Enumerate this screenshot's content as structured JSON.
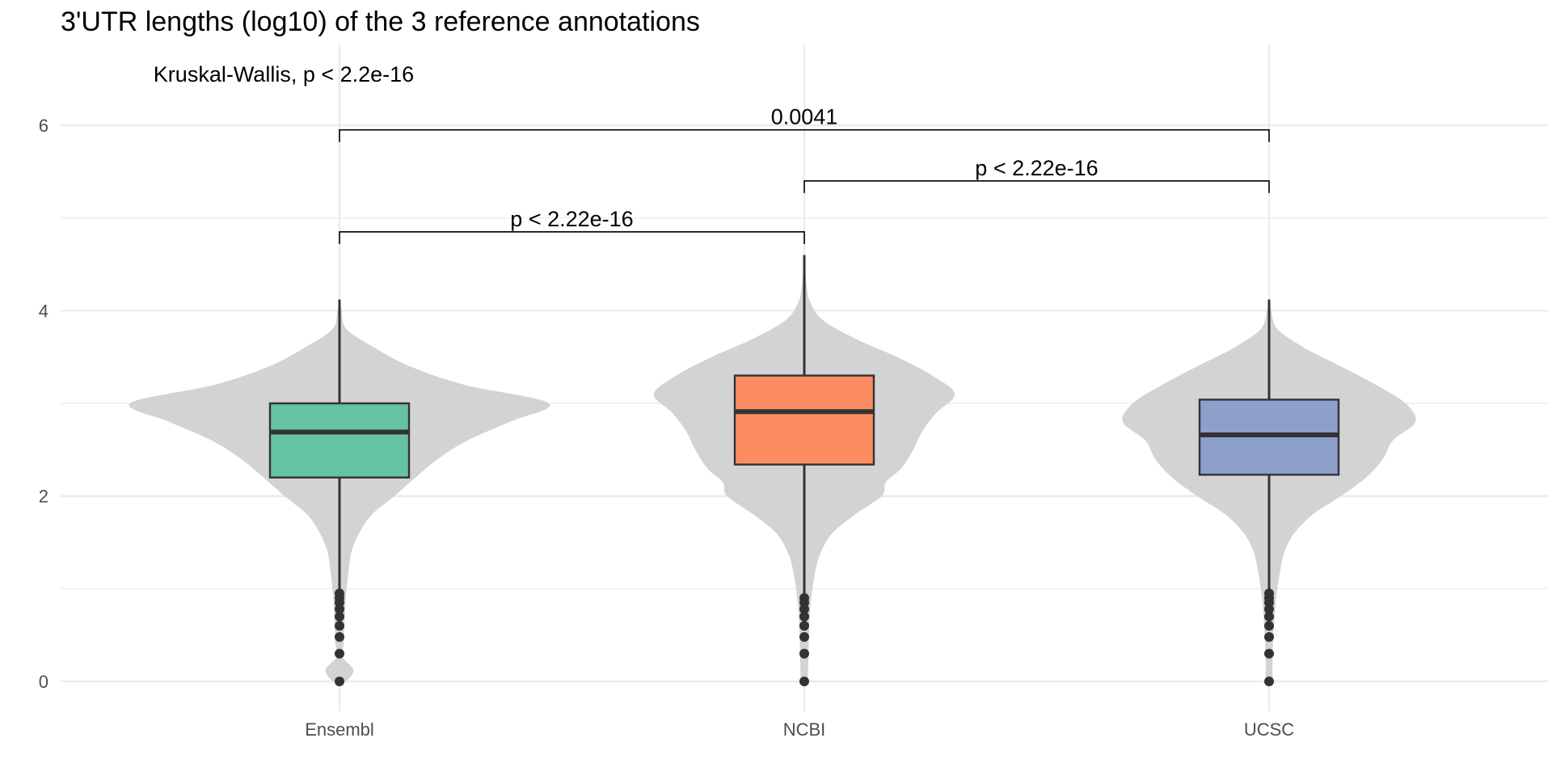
{
  "chart_data": {
    "type": "violin",
    "title": "3'UTR lengths (log10) of the 3 reference annotations",
    "xlabel": "",
    "ylabel": "",
    "categories": [
      "Ensembl",
      "NCBI",
      "UCSC"
    ],
    "ylim": [
      -0.3,
      6.8
    ],
    "y_ticks": [
      0,
      2,
      4,
      6
    ],
    "y_tick_labels": [
      "0",
      "2",
      "4",
      "6"
    ],
    "grid": true,
    "legend": "none",
    "colors": {
      "Ensembl": "#66c2a5",
      "NCBI": "#fc8d62",
      "UCSC": "#8da0cb",
      "violin": "#d3d3d3",
      "outline": "#333333"
    },
    "boxes": [
      {
        "category": "Ensembl",
        "whisker_low": 0.97,
        "q1": 2.2,
        "median": 2.69,
        "q3": 3.0,
        "whisker_high": 4.12
      },
      {
        "category": "NCBI",
        "whisker_low": 0.93,
        "q1": 2.34,
        "median": 2.91,
        "q3": 3.3,
        "whisker_high": 4.6
      },
      {
        "category": "UCSC",
        "whisker_low": 0.97,
        "q1": 2.23,
        "median": 2.66,
        "q3": 3.04,
        "whisker_high": 4.12
      }
    ],
    "outliers": [
      {
        "category": "Ensembl",
        "values": [
          0,
          0.3,
          0.48,
          0.6,
          0.7,
          0.78,
          0.85,
          0.9,
          0.95
        ]
      },
      {
        "category": "NCBI",
        "values": [
          0,
          0.3,
          0.48,
          0.6,
          0.7,
          0.78,
          0.85,
          0.9
        ]
      },
      {
        "category": "UCSC",
        "values": [
          0,
          0.3,
          0.48,
          0.6,
          0.7,
          0.78,
          0.85,
          0.9,
          0.95
        ]
      }
    ],
    "violins": [
      {
        "category": "Ensembl",
        "profile": [
          [
            0.0,
            0.1
          ],
          [
            0.12,
            0.2
          ],
          [
            0.25,
            0.05
          ],
          [
            0.3,
            0.04
          ],
          [
            0.42,
            0.06
          ],
          [
            0.48,
            0.06
          ],
          [
            0.6,
            0.07
          ],
          [
            0.8,
            0.08
          ],
          [
            1.0,
            0.1
          ],
          [
            1.2,
            0.13
          ],
          [
            1.4,
            0.17
          ],
          [
            1.6,
            0.28
          ],
          [
            1.8,
            0.46
          ],
          [
            2.0,
            0.78
          ],
          [
            2.2,
            1.08
          ],
          [
            2.4,
            1.4
          ],
          [
            2.6,
            1.82
          ],
          [
            2.8,
            2.42
          ],
          [
            3.0,
            2.98
          ],
          [
            3.2,
            1.78
          ],
          [
            3.4,
            1.0
          ],
          [
            3.6,
            0.5
          ],
          [
            3.8,
            0.1
          ],
          [
            4.0,
            0.03
          ],
          [
            4.12,
            0.0
          ]
        ]
      },
      {
        "category": "NCBI",
        "profile": [
          [
            0.0,
            0.05
          ],
          [
            0.3,
            0.06
          ],
          [
            0.6,
            0.07
          ],
          [
            0.9,
            0.1
          ],
          [
            1.2,
            0.16
          ],
          [
            1.4,
            0.24
          ],
          [
            1.6,
            0.4
          ],
          [
            1.8,
            0.72
          ],
          [
            2.0,
            1.1
          ],
          [
            2.15,
            1.16
          ],
          [
            2.3,
            1.38
          ],
          [
            2.5,
            1.55
          ],
          [
            2.7,
            1.68
          ],
          [
            2.9,
            1.88
          ],
          [
            3.1,
            2.14
          ],
          [
            3.3,
            1.82
          ],
          [
            3.5,
            1.32
          ],
          [
            3.7,
            0.72
          ],
          [
            3.9,
            0.26
          ],
          [
            4.1,
            0.08
          ],
          [
            4.3,
            0.03
          ],
          [
            4.6,
            0.0
          ]
        ]
      },
      {
        "category": "UCSC",
        "profile": [
          [
            0.0,
            0.05
          ],
          [
            0.3,
            0.05
          ],
          [
            0.6,
            0.07
          ],
          [
            0.9,
            0.1
          ],
          [
            1.2,
            0.16
          ],
          [
            1.4,
            0.22
          ],
          [
            1.6,
            0.36
          ],
          [
            1.8,
            0.62
          ],
          [
            2.0,
            1.02
          ],
          [
            2.2,
            1.38
          ],
          [
            2.4,
            1.62
          ],
          [
            2.6,
            1.76
          ],
          [
            2.8,
            2.08
          ],
          [
            3.0,
            1.94
          ],
          [
            3.2,
            1.52
          ],
          [
            3.4,
            1.02
          ],
          [
            3.6,
            0.5
          ],
          [
            3.8,
            0.12
          ],
          [
            4.0,
            0.03
          ],
          [
            4.12,
            0.0
          ]
        ]
      }
    ],
    "global_test": {
      "label": "Kruskal-Wallis, p < 2.2e-16",
      "y": 6.55,
      "x_category": "Ensembl",
      "x_offset": -0.12
    },
    "comparisons": [
      {
        "from": "Ensembl",
        "to": "NCBI",
        "y": 4.85,
        "label": "p < 2.22e-16"
      },
      {
        "from": "NCBI",
        "to": "UCSC",
        "y": 5.4,
        "label": "p < 2.22e-16"
      },
      {
        "from": "Ensembl",
        "to": "UCSC",
        "y": 5.95,
        "label": "0.0041"
      }
    ]
  }
}
